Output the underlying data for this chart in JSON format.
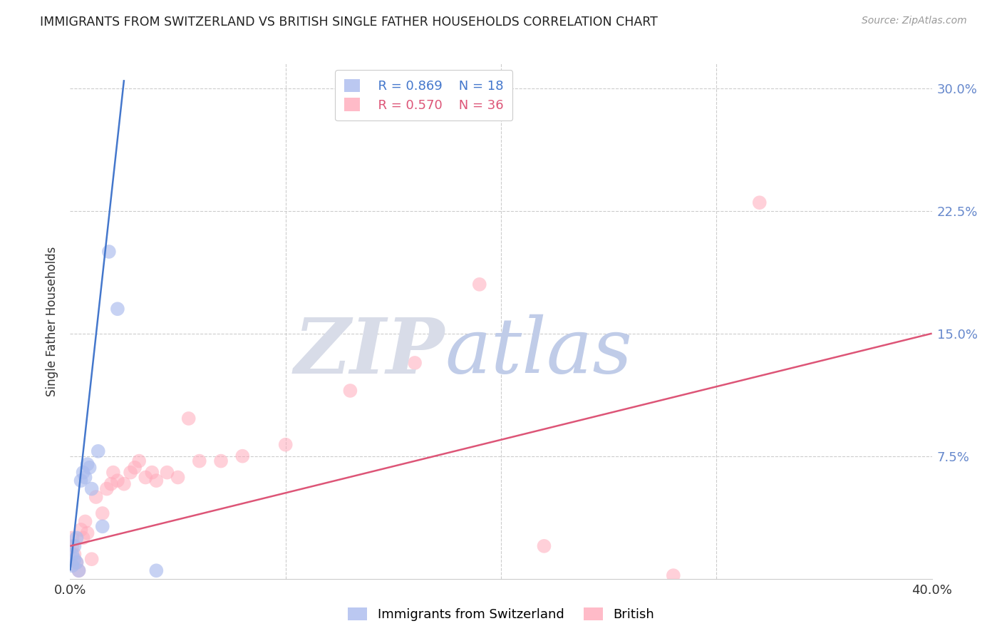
{
  "title": "IMMIGRANTS FROM SWITZERLAND VS BRITISH SINGLE FATHER HOUSEHOLDS CORRELATION CHART",
  "source": "Source: ZipAtlas.com",
  "ylabel": "Single Father Households",
  "ytick_labels": [
    "",
    "7.5%",
    "15.0%",
    "22.5%",
    "30.0%"
  ],
  "ytick_values": [
    0.0,
    0.075,
    0.15,
    0.225,
    0.3
  ],
  "xlim": [
    0.0,
    0.4
  ],
  "ylim": [
    0.0,
    0.315
  ],
  "legend_blue_r": "R = 0.869",
  "legend_blue_n": "N = 18",
  "legend_pink_r": "R = 0.570",
  "legend_pink_n": "N = 36",
  "legend_label_blue": "Immigrants from Switzerland",
  "legend_label_pink": "British",
  "blue_color": "#aabbee",
  "pink_color": "#ffaabb",
  "blue_line_color": "#4477cc",
  "pink_line_color": "#dd5577",
  "blue_scatter_x": [
    0.001,
    0.001,
    0.002,
    0.002,
    0.003,
    0.003,
    0.004,
    0.005,
    0.006,
    0.007,
    0.008,
    0.009,
    0.01,
    0.013,
    0.015,
    0.018,
    0.022,
    0.04
  ],
  "blue_scatter_y": [
    0.008,
    0.015,
    0.012,
    0.02,
    0.01,
    0.025,
    0.005,
    0.06,
    0.065,
    0.062,
    0.07,
    0.068,
    0.055,
    0.078,
    0.032,
    0.2,
    0.165,
    0.005
  ],
  "pink_scatter_x": [
    0.001,
    0.001,
    0.002,
    0.003,
    0.004,
    0.005,
    0.006,
    0.007,
    0.008,
    0.01,
    0.012,
    0.015,
    0.017,
    0.019,
    0.02,
    0.022,
    0.025,
    0.028,
    0.03,
    0.032,
    0.035,
    0.038,
    0.04,
    0.045,
    0.05,
    0.055,
    0.06,
    0.07,
    0.08,
    0.1,
    0.13,
    0.16,
    0.19,
    0.22,
    0.28,
    0.32
  ],
  "pink_scatter_y": [
    0.02,
    0.025,
    0.015,
    0.01,
    0.005,
    0.03,
    0.025,
    0.035,
    0.028,
    0.012,
    0.05,
    0.04,
    0.055,
    0.058,
    0.065,
    0.06,
    0.058,
    0.065,
    0.068,
    0.072,
    0.062,
    0.065,
    0.06,
    0.065,
    0.062,
    0.098,
    0.072,
    0.072,
    0.075,
    0.082,
    0.115,
    0.132,
    0.18,
    0.02,
    0.002,
    0.23
  ],
  "blue_line_x0": 0.0,
  "blue_line_y0": 0.005,
  "blue_line_x1": 0.025,
  "blue_line_y1": 0.305,
  "pink_line_x0": 0.0,
  "pink_line_y0": 0.02,
  "pink_line_x1": 0.4,
  "pink_line_y1": 0.15,
  "background_color": "#ffffff",
  "grid_color": "#cccccc",
  "title_color": "#222222",
  "watermark_zip_color": "#d8dce8",
  "watermark_atlas_color": "#c0cce8"
}
